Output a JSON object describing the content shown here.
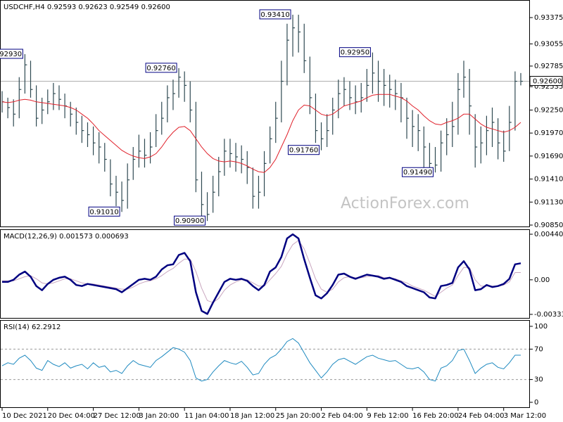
{
  "chart_data": [
    {
      "type": "ohlc",
      "title": "USDCHF,H4  0.92593 0.92623 0.92549 0.92600",
      "watermark": "ActionForex.com",
      "bar_color": "#2f4a52",
      "ma_color": "#e0202a",
      "ylim": [
        0.90833,
        0.93589
      ],
      "yticks": [
        {
          "value": 0.93375,
          "label": "0.93375"
        },
        {
          "value": 0.93055,
          "label": "0.93055"
        },
        {
          "value": 0.92785,
          "label": "0.92785"
        },
        {
          "value": 0.92535,
          "label": "0.92535"
        },
        {
          "value": 0.9225,
          "label": "0.92250"
        },
        {
          "value": 0.9197,
          "label": "0.91970"
        },
        {
          "value": 0.9169,
          "label": "0.91690"
        },
        {
          "value": 0.9141,
          "label": "0.91410"
        },
        {
          "value": 0.9113,
          "label": "0.91130"
        },
        {
          "value": 0.9085,
          "label": "0.90850"
        }
      ],
      "last": {
        "value": 0.926,
        "label": "0.92600"
      },
      "close": [
        0.9235,
        0.9228,
        0.922,
        0.925,
        0.928,
        0.925,
        0.9215,
        0.9225,
        0.9235,
        0.9245,
        0.9238,
        0.923,
        0.922,
        0.921,
        0.92,
        0.9195,
        0.9185,
        0.918,
        0.9165,
        0.9135,
        0.9125,
        0.9115,
        0.914,
        0.9165,
        0.9175,
        0.917,
        0.918,
        0.92,
        0.9215,
        0.924,
        0.9245,
        0.9265,
        0.9255,
        0.9225,
        0.914,
        0.911,
        0.9098,
        0.9125,
        0.915,
        0.9175,
        0.9172,
        0.9168,
        0.9165,
        0.9155,
        0.912,
        0.9125,
        0.916,
        0.919,
        0.9215,
        0.926,
        0.931,
        0.9325,
        0.932,
        0.9285,
        0.924,
        0.92,
        0.919,
        0.92,
        0.9225,
        0.9245,
        0.925,
        0.924,
        0.9235,
        0.924,
        0.9255,
        0.927,
        0.926,
        0.9255,
        0.925,
        0.9245,
        0.924,
        0.9215,
        0.9205,
        0.92,
        0.918,
        0.916,
        0.9158,
        0.9185,
        0.9195,
        0.9205,
        0.925,
        0.9265,
        0.923,
        0.918,
        0.9185,
        0.92,
        0.921,
        0.9185,
        0.9175,
        0.921,
        0.926,
        0.926
      ],
      "high": [
        0.9248,
        0.924,
        0.9238,
        0.9265,
        0.9293,
        0.9285,
        0.9255,
        0.924,
        0.925,
        0.9258,
        0.9255,
        0.9245,
        0.9235,
        0.9228,
        0.9218,
        0.921,
        0.9205,
        0.9198,
        0.9185,
        0.9165,
        0.9145,
        0.9138,
        0.916,
        0.918,
        0.9195,
        0.919,
        0.9198,
        0.922,
        0.9235,
        0.9255,
        0.9262,
        0.9276,
        0.9272,
        0.926,
        0.9235,
        0.915,
        0.9125,
        0.9145,
        0.9168,
        0.919,
        0.919,
        0.9185,
        0.9182,
        0.9175,
        0.9155,
        0.9145,
        0.9175,
        0.9205,
        0.9235,
        0.9285,
        0.933,
        0.9341,
        0.9341,
        0.933,
        0.929,
        0.9245,
        0.921,
        0.922,
        0.924,
        0.9262,
        0.9265,
        0.926,
        0.9255,
        0.9258,
        0.9275,
        0.9295,
        0.9285,
        0.9275,
        0.9268,
        0.9262,
        0.9258,
        0.924,
        0.9225,
        0.922,
        0.9205,
        0.9185,
        0.918,
        0.92,
        0.9215,
        0.9235,
        0.927,
        0.9285,
        0.9275,
        0.922,
        0.9205,
        0.9218,
        0.9228,
        0.9215,
        0.92,
        0.923,
        0.9272,
        0.927
      ],
      "low": [
        0.9222,
        0.9215,
        0.9205,
        0.9215,
        0.9245,
        0.924,
        0.9205,
        0.9208,
        0.922,
        0.9225,
        0.9225,
        0.9215,
        0.9205,
        0.9195,
        0.9185,
        0.918,
        0.917,
        0.916,
        0.915,
        0.912,
        0.9108,
        0.9101,
        0.9105,
        0.914,
        0.9155,
        0.9155,
        0.916,
        0.918,
        0.9195,
        0.921,
        0.9225,
        0.924,
        0.9235,
        0.921,
        0.9125,
        0.9095,
        0.909,
        0.91,
        0.912,
        0.9145,
        0.9155,
        0.915,
        0.9148,
        0.9135,
        0.9105,
        0.9105,
        0.912,
        0.916,
        0.9185,
        0.921,
        0.9255,
        0.929,
        0.9295,
        0.927,
        0.922,
        0.9185,
        0.9176,
        0.918,
        0.9195,
        0.9215,
        0.923,
        0.9225,
        0.922,
        0.9222,
        0.9235,
        0.9245,
        0.9235,
        0.923,
        0.9228,
        0.9225,
        0.921,
        0.919,
        0.918,
        0.9175,
        0.9155,
        0.9149,
        0.9149,
        0.915,
        0.917,
        0.918,
        0.9195,
        0.924,
        0.9195,
        0.9155,
        0.916,
        0.917,
        0.918,
        0.9165,
        0.9162,
        0.9175,
        0.92,
        0.9255
      ],
      "ma": [
        0.9235,
        0.9234,
        0.9235,
        0.9237,
        0.9238,
        0.9237,
        0.9235,
        0.9234,
        0.9233,
        0.9232,
        0.9231,
        0.923,
        0.9228,
        0.9225,
        0.922,
        0.9215,
        0.9208,
        0.92,
        0.9194,
        0.9188,
        0.9182,
        0.9176,
        0.9172,
        0.9169,
        0.9167,
        0.9166,
        0.9168,
        0.9172,
        0.918,
        0.919,
        0.9198,
        0.9204,
        0.9205,
        0.92,
        0.919,
        0.918,
        0.9172,
        0.9166,
        0.9163,
        0.9162,
        0.9163,
        0.9162,
        0.916,
        0.9157,
        0.9153,
        0.915,
        0.9149,
        0.9155,
        0.9165,
        0.918,
        0.9195,
        0.9212,
        0.9225,
        0.9231,
        0.923,
        0.9225,
        0.922,
        0.9218,
        0.922,
        0.9225,
        0.923,
        0.9232,
        0.9234,
        0.9236,
        0.924,
        0.9243,
        0.9244,
        0.9244,
        0.9244,
        0.9242,
        0.924,
        0.9236,
        0.923,
        0.9225,
        0.9218,
        0.9212,
        0.9208,
        0.9207,
        0.921,
        0.9212,
        0.9215,
        0.922,
        0.922,
        0.9214,
        0.9208,
        0.9204,
        0.9202,
        0.92,
        0.9198,
        0.92,
        0.9204,
        0.921
      ],
      "annotations": [
        {
          "index": 4,
          "value": 0.9293,
          "label": "0.92930"
        },
        {
          "index": 31,
          "value": 0.9276,
          "label": "0.92760"
        },
        {
          "index": 51,
          "value": 0.9341,
          "label": "0.93410"
        },
        {
          "index": 65,
          "value": 0.9295,
          "label": "0.92950"
        },
        {
          "index": 56,
          "value": 0.9176,
          "label": "0.91760"
        },
        {
          "index": 76,
          "value": 0.9149,
          "label": "0.91490"
        },
        {
          "index": 21,
          "value": 0.9101,
          "label": "0.91010"
        },
        {
          "index": 36,
          "value": 0.909,
          "label": "0.90900"
        }
      ]
    },
    {
      "type": "macd",
      "title": "MACD(12,26,9) 0.001573 0.000693",
      "ylim": [
        -0.00368,
        0.00488
      ],
      "yticks": [
        0.004403,
        {
          "value": 0,
          "label": "0.00"
        },
        -0.003338
      ],
      "series": [
        {
          "color": "#000080",
          "values": [
            -0.0002,
            -0.0002,
            0,
            0.0005,
            0.0008,
            0.0003,
            -0.0006,
            -0.001,
            -0.0004,
            0,
            0.0002,
            0.0003,
            0,
            -0.0005,
            -0.0006,
            -0.0004,
            -0.0005,
            -0.0006,
            -0.0007,
            -0.0008,
            -0.0009,
            -0.0012,
            -0.0008,
            -0.0004,
            0,
            0.0001,
            0,
            0.0003,
            0.001,
            0.0014,
            0.0015,
            0.0024,
            0.0026,
            0.0018,
            -0.0012,
            -0.003,
            -0.0033,
            -0.0022,
            -0.0012,
            -0.0002,
            0.0001,
            0,
            0.0001,
            -0.0001,
            -0.0006,
            -0.001,
            -0.0005,
            0.0008,
            0.0012,
            0.0022,
            0.004,
            0.0044,
            0.004,
            0.002,
            0.0002,
            -0.0015,
            -0.0018,
            -0.0013,
            -0.0005,
            0.0005,
            0.0006,
            0.0003,
            0.0001,
            0.0003,
            0.0005,
            0.0004,
            0.0003,
            0.0001,
            0.0002,
            0,
            -0.0002,
            -0.0006,
            -0.0008,
            -0.001,
            -0.0012,
            -0.0017,
            -0.0018,
            -0.0006,
            -0.0005,
            -0.0003,
            0.0012,
            0.0018,
            0.001,
            -0.001,
            -0.0009,
            -0.0005,
            -0.0007,
            -0.0006,
            -0.0004,
            0.0001,
            0.0015,
            0.0016
          ]
        },
        {
          "color": "#c9a6bf",
          "values": [
            -0.0001,
            -0.0001,
            -0.0001,
            0.0001,
            0.0003,
            0.0004,
            0.0001,
            -0.0003,
            -0.0004,
            -0.0003,
            -0.0001,
            0.0001,
            0.0001,
            -0.0001,
            -0.0003,
            -0.0004,
            -0.0004,
            -0.0005,
            -0.0006,
            -0.0007,
            -0.0008,
            -0.0009,
            -0.0009,
            -0.0007,
            -0.0004,
            -0.0002,
            -0.0001,
            0.0001,
            0.0004,
            0.0008,
            0.0011,
            0.0016,
            0.002,
            0.002,
            0.0008,
            -0.0008,
            -0.002,
            -0.0022,
            -0.0018,
            -0.001,
            -0.0005,
            -0.0002,
            0,
            0,
            -0.0003,
            -0.0006,
            -0.0006,
            0,
            0.0006,
            0.0013,
            0.0025,
            0.0034,
            0.0038,
            0.003,
            0.0016,
            0.0001,
            -0.0009,
            -0.0012,
            -0.0009,
            -0.0002,
            0.0002,
            0.0003,
            0.0002,
            0.0002,
            0.0003,
            0.0004,
            0.0004,
            0.0002,
            0.0002,
            0.0001,
            -0.0001,
            -0.0003,
            -0.0006,
            -0.0008,
            -0.001,
            -0.0013,
            -0.0016,
            -0.0012,
            -0.0008,
            -0.0005,
            0.0004,
            0.0012,
            0.0012,
            0,
            -0.0006,
            -0.0006,
            -0.0006,
            -0.0006,
            -0.0005,
            -0.0002,
            0.0007,
            0.0007
          ]
        }
      ]
    },
    {
      "type": "rsi",
      "title": "RSI(14) 62.2912",
      "color": "#1f8ac0",
      "ylim": [
        -7.4,
        108.3
      ],
      "yticks": [
        100,
        70,
        30,
        0
      ],
      "levels": [
        70,
        30
      ],
      "values": [
        48,
        52,
        50,
        58,
        62,
        55,
        45,
        42,
        55,
        50,
        47,
        52,
        45,
        48,
        50,
        44,
        52,
        46,
        48,
        40,
        42,
        38,
        48,
        55,
        50,
        48,
        46,
        55,
        60,
        66,
        72,
        70,
        66,
        55,
        32,
        28,
        30,
        40,
        48,
        55,
        52,
        50,
        54,
        46,
        36,
        38,
        50,
        58,
        62,
        70,
        80,
        84,
        78,
        65,
        52,
        42,
        32,
        40,
        50,
        56,
        58,
        54,
        50,
        55,
        60,
        62,
        58,
        56,
        54,
        55,
        50,
        45,
        44,
        46,
        40,
        30,
        28,
        45,
        48,
        55,
        68,
        70,
        55,
        38,
        45,
        50,
        52,
        46,
        44,
        52,
        62,
        62
      ],
      "xticks": [
        {
          "value": 0,
          "label": "10 Dec 2021"
        },
        {
          "value": 8,
          "label": "20 Dec 04:00"
        },
        {
          "value": 16,
          "label": "27 Dec 12:00"
        },
        {
          "value": 24,
          "label": "3 Jan 20:00"
        },
        {
          "value": 32,
          "label": "11 Jan 04:00"
        },
        {
          "value": 40,
          "label": "18 Jan 12:00"
        },
        {
          "value": 48,
          "label": "25 Jan 20:00"
        },
        {
          "value": 56,
          "label": "2 Feb 04:00"
        },
        {
          "value": 64,
          "label": "9 Feb 12:00"
        },
        {
          "value": 72,
          "label": "16 Feb 20:00"
        },
        {
          "value": 80,
          "label": "24 Feb 04:00"
        },
        {
          "value": 88,
          "label": "3 Mar 12:00"
        }
      ]
    }
  ]
}
